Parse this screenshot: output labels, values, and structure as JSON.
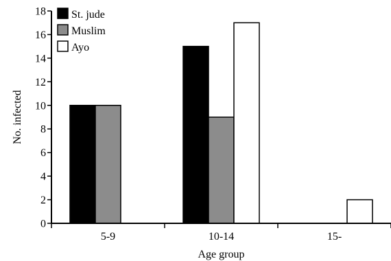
{
  "chart_data": {
    "type": "bar",
    "title": "",
    "xlabel": "Age group",
    "ylabel": "No. infected",
    "categories": [
      "5-9",
      "10-14",
      "15-"
    ],
    "series": [
      {
        "name": "St. jude",
        "values": [
          10,
          15,
          0
        ],
        "color": "#000000"
      },
      {
        "name": "Muslim",
        "values": [
          10,
          9,
          0
        ],
        "color": "#8c8c8c"
      },
      {
        "name": "Ayo",
        "values": [
          0,
          17,
          2
        ],
        "color": "#ffffff"
      }
    ],
    "ylim": [
      0,
      18
    ],
    "yticks": [
      0,
      2,
      4,
      6,
      8,
      10,
      12,
      14,
      16,
      18
    ],
    "grid": false,
    "legend": "top-left"
  }
}
